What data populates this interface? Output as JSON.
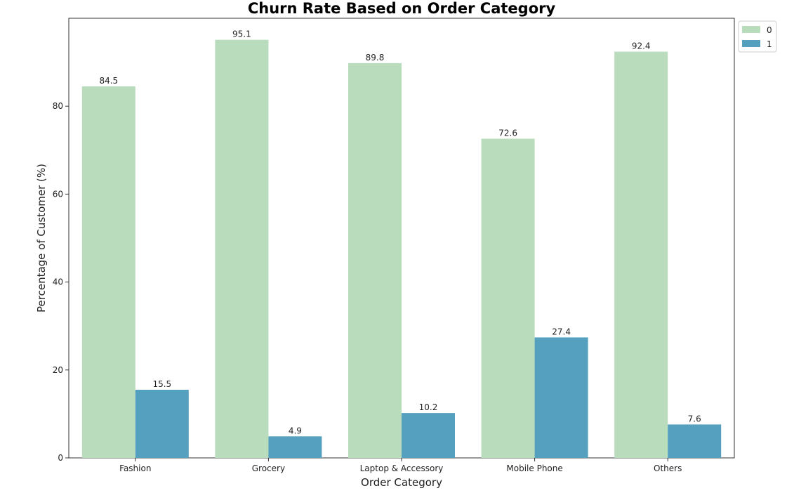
{
  "chart_data": {
    "type": "bar",
    "title": "Churn Rate Based on Order Category",
    "xlabel": "Order Category",
    "ylabel": "Percentage of Customer (%)",
    "categories": [
      "Fashion",
      "Grocery",
      "Laptop & Accessory",
      "Mobile Phone",
      "Others"
    ],
    "series": [
      {
        "name": "0",
        "color": "#b8dcbc",
        "values": [
          84.5,
          95.1,
          89.8,
          72.6,
          92.4
        ],
        "labels": [
          "84.5",
          "95.1",
          "89.8",
          "72.6",
          "92.4"
        ]
      },
      {
        "name": "1",
        "color": "#559fbf",
        "values": [
          15.5,
          4.9,
          10.2,
          27.4,
          7.6
        ],
        "labels": [
          "15.5",
          "4.9",
          "10.2",
          "27.4",
          "7.6"
        ]
      }
    ],
    "ylim": [
      0,
      100
    ],
    "yticks": [
      0,
      20,
      40,
      60,
      80
    ],
    "grid": false,
    "legend_position": "outside-top-right"
  }
}
